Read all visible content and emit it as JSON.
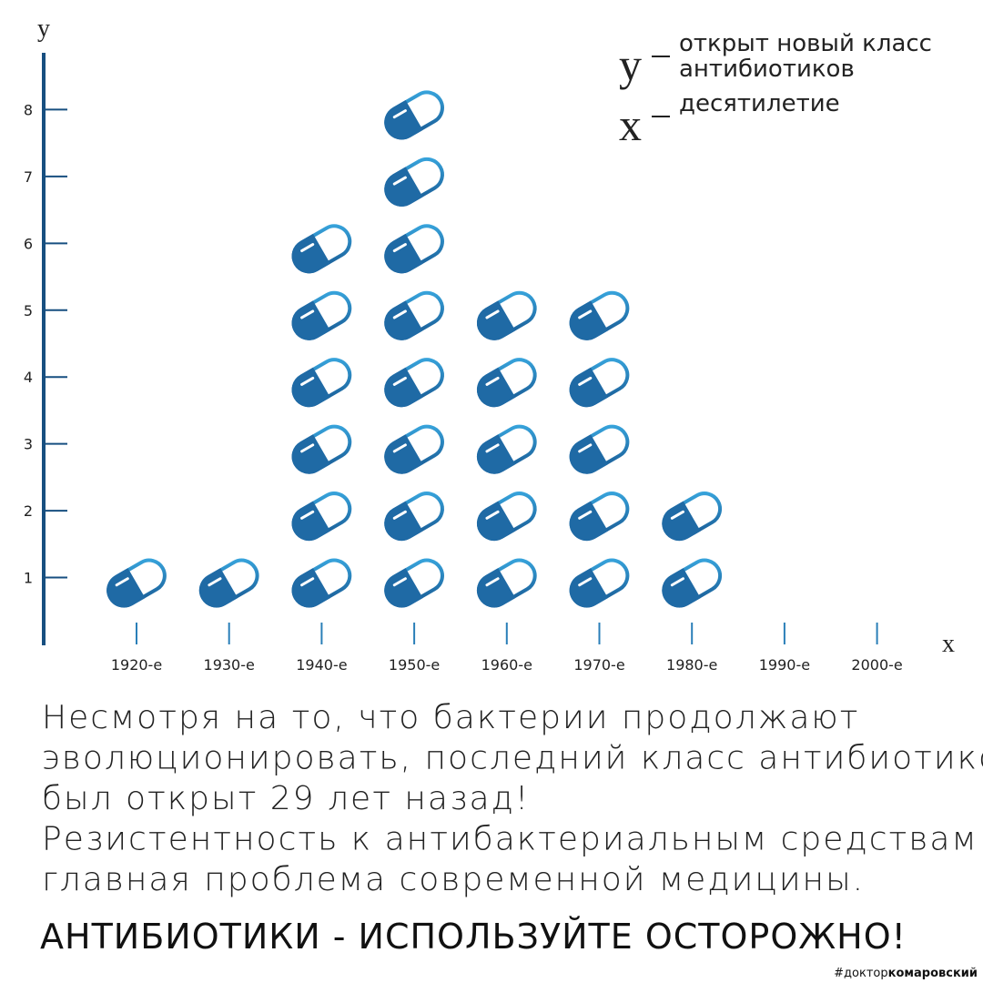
{
  "chart_data": {
    "type": "pictogram",
    "y_axis_label": "y",
    "x_axis_label": "x",
    "categories": [
      "1920-е",
      "1930-е",
      "1940-е",
      "1950-е",
      "1960-е",
      "1970-е",
      "1980-е",
      "1990-е",
      "2000-е"
    ],
    "values": [
      1,
      1,
      6,
      8,
      5,
      5,
      2,
      0,
      0
    ],
    "color": "#1f6aa5",
    "ylim": [
      0,
      8.85
    ],
    "yticks": [
      1,
      2,
      3,
      4,
      5,
      6,
      7,
      8
    ],
    "legend": [
      {
        "symbol": "y",
        "text": [
          "открыт новый класс",
          "антибиотиков"
        ]
      },
      {
        "symbol": "x",
        "text": [
          "десятилетие"
        ]
      }
    ]
  },
  "caption": {
    "lines": [
      "Несмотря на то, что бактерии продолжают",
      "эволюционировать, последний класс антибиотиков",
      "был открыт 29 лет назад!",
      "Резистентность к антибактериальным средствам -",
      "главная проблема современной медицины."
    ],
    "slogan": "АНТИБИОТИКИ - ИСПОЛЬЗУЙТЕ ОСТОРОЖНО!",
    "hashtag": [
      "#доктор",
      "комаровский"
    ]
  }
}
